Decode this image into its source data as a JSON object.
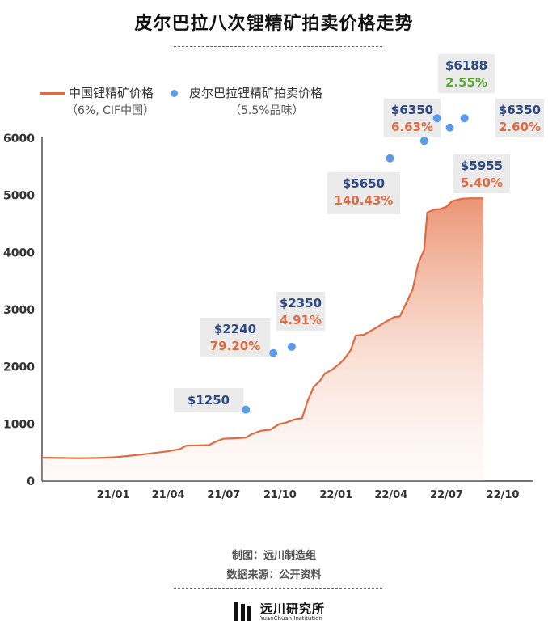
{
  "title": "皮尔巴拉八次锂精矿拍卖价格走势",
  "legend": {
    "line_label": "中国锂精矿价格",
    "line_sub": "（6%, CIF中国）",
    "dot_label": "皮尔巴拉锂精矿拍卖价格",
    "dot_sub": "（5.5%品味）"
  },
  "colors": {
    "line": "#e06b43",
    "dot": "#5b9bea",
    "price_text": "#2e4a86",
    "pct_text": "#e06b43",
    "pct_green": "#5aa832",
    "label_bg": "#ebebeb"
  },
  "footer": {
    "credit": "制图：远川制造组",
    "source": "数据来源：公开资料",
    "logo_cn": "远川研究所",
    "logo_en": "YuanChuan Institution"
  },
  "chart_data": {
    "type": "line",
    "x_tick_labels": [
      "21/01",
      "21/04",
      "21/07",
      "21/10",
      "22/01",
      "22/04",
      "22/07",
      "22/10"
    ],
    "y_ticks": [
      0,
      1000,
      2000,
      3000,
      4000,
      5000,
      6000
    ],
    "ylim": [
      0,
      6000
    ],
    "xlim": [
      "2020-09-01",
      "2022-11-15"
    ],
    "series": [
      {
        "name": "中国锂精矿价格",
        "note": "（6%, CIF中国）",
        "points": [
          [
            "2020-09-01",
            410
          ],
          [
            "2020-10-01",
            405
          ],
          [
            "2020-11-01",
            400
          ],
          [
            "2020-12-01",
            405
          ],
          [
            "2021-01-01",
            420
          ],
          [
            "2021-01-20",
            440
          ],
          [
            "2021-02-15",
            470
          ],
          [
            "2021-03-10",
            500
          ],
          [
            "2021-03-25",
            520
          ],
          [
            "2021-04-15",
            560
          ],
          [
            "2021-04-25",
            620
          ],
          [
            "2021-05-15",
            625
          ],
          [
            "2021-06-01",
            630
          ],
          [
            "2021-06-15",
            700
          ],
          [
            "2021-06-25",
            740
          ],
          [
            "2021-07-15",
            750
          ],
          [
            "2021-08-01",
            760
          ],
          [
            "2021-08-10",
            820
          ],
          [
            "2021-08-25",
            880
          ],
          [
            "2021-09-10",
            900
          ],
          [
            "2021-09-25",
            1000
          ],
          [
            "2021-10-05",
            1020
          ],
          [
            "2021-10-20",
            1080
          ],
          [
            "2021-11-01",
            1100
          ],
          [
            "2021-11-10",
            1400
          ],
          [
            "2021-11-20",
            1650
          ],
          [
            "2021-11-30",
            1750
          ],
          [
            "2021-12-08",
            1880
          ],
          [
            "2021-12-20",
            1950
          ],
          [
            "2022-01-01",
            2050
          ],
          [
            "2022-01-10",
            2150
          ],
          [
            "2022-01-20",
            2300
          ],
          [
            "2022-01-28",
            2550
          ],
          [
            "2022-02-10",
            2560
          ],
          [
            "2022-02-20",
            2620
          ],
          [
            "2022-03-05",
            2700
          ],
          [
            "2022-03-20",
            2800
          ],
          [
            "2022-04-01",
            2870
          ],
          [
            "2022-04-10",
            2880
          ],
          [
            "2022-04-20",
            3100
          ],
          [
            "2022-05-01",
            3350
          ],
          [
            "2022-05-10",
            3800
          ],
          [
            "2022-05-20",
            4050
          ],
          [
            "2022-05-25",
            4700
          ],
          [
            "2022-06-05",
            4750
          ],
          [
            "2022-06-15",
            4760
          ],
          [
            "2022-06-25",
            4800
          ],
          [
            "2022-07-05",
            4900
          ],
          [
            "2022-07-20",
            4940
          ],
          [
            "2022-08-05",
            4950
          ],
          [
            "2022-08-25",
            4950
          ]
        ]
      },
      {
        "name": "皮尔巴拉锂精矿拍卖价格",
        "note": "（5.5%品味）",
        "points": [
          [
            "2021-08-01",
            1250
          ],
          [
            "2021-09-15",
            2240
          ],
          [
            "2021-10-15",
            2350
          ],
          [
            "2022-03-25",
            5650
          ],
          [
            "2022-05-20",
            5955
          ],
          [
            "2022-06-10",
            6350
          ],
          [
            "2022-07-01",
            6188
          ],
          [
            "2022-07-25",
            6350
          ]
        ]
      }
    ],
    "annotations": [
      {
        "price": "$1250",
        "pct": ""
      },
      {
        "price": "$2240",
        "pct": "79.20%"
      },
      {
        "price": "$2350",
        "pct": "4.91%"
      },
      {
        "price": "$5650",
        "pct": "140.43%"
      },
      {
        "price": "$5955",
        "pct": "5.40%"
      },
      {
        "price": "$6350",
        "pct": "6.63%"
      },
      {
        "price": "$6188",
        "pct": "2.55%"
      },
      {
        "price": "$6350",
        "pct": "2.60%"
      }
    ]
  }
}
